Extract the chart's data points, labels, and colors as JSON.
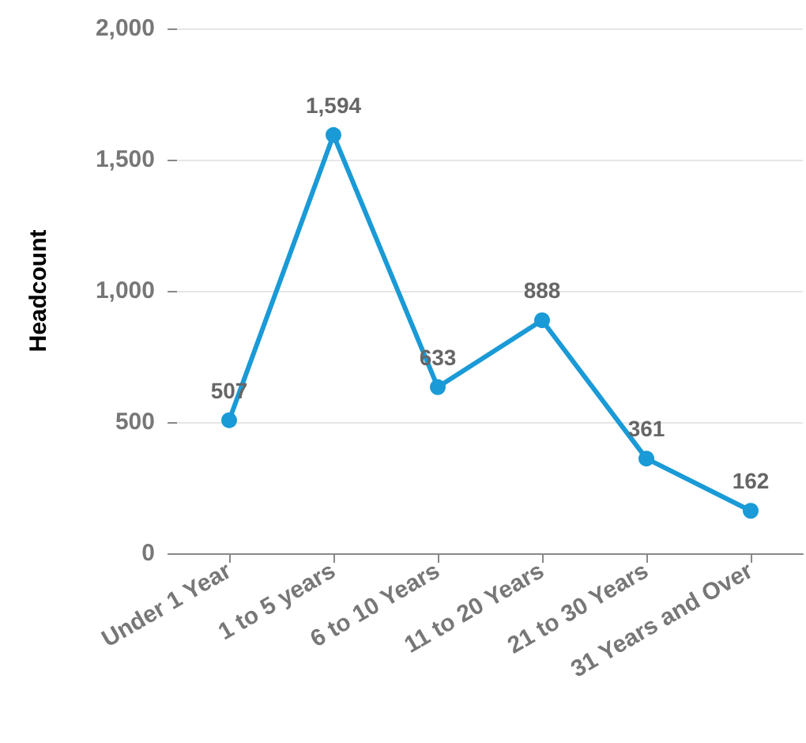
{
  "chart_data": {
    "type": "line",
    "ylabel": "Headcount",
    "categories": [
      "Under 1 Year",
      "1 to 5 years",
      "6 to 10 Years",
      "11 to 20 Years",
      "21 to 30 Years",
      "31 Years and Over"
    ],
    "series": [
      {
        "color": "#1a9ad6",
        "values": [
          507,
          1594,
          633,
          888,
          361,
          162
        ],
        "value_labels": [
          "507",
          "1,594",
          "633",
          "888",
          "361",
          "162"
        ]
      }
    ],
    "ylim": [
      0,
      2000
    ],
    "yticks": [
      0,
      500,
      {
        "value": 1000,
        "label": "1,000"
      },
      {
        "value": 1500,
        "label": "1,500"
      },
      {
        "value": 2000,
        "label": "2,000"
      }
    ],
    "grid": "y",
    "marker": "circle",
    "line_style": "solid"
  }
}
